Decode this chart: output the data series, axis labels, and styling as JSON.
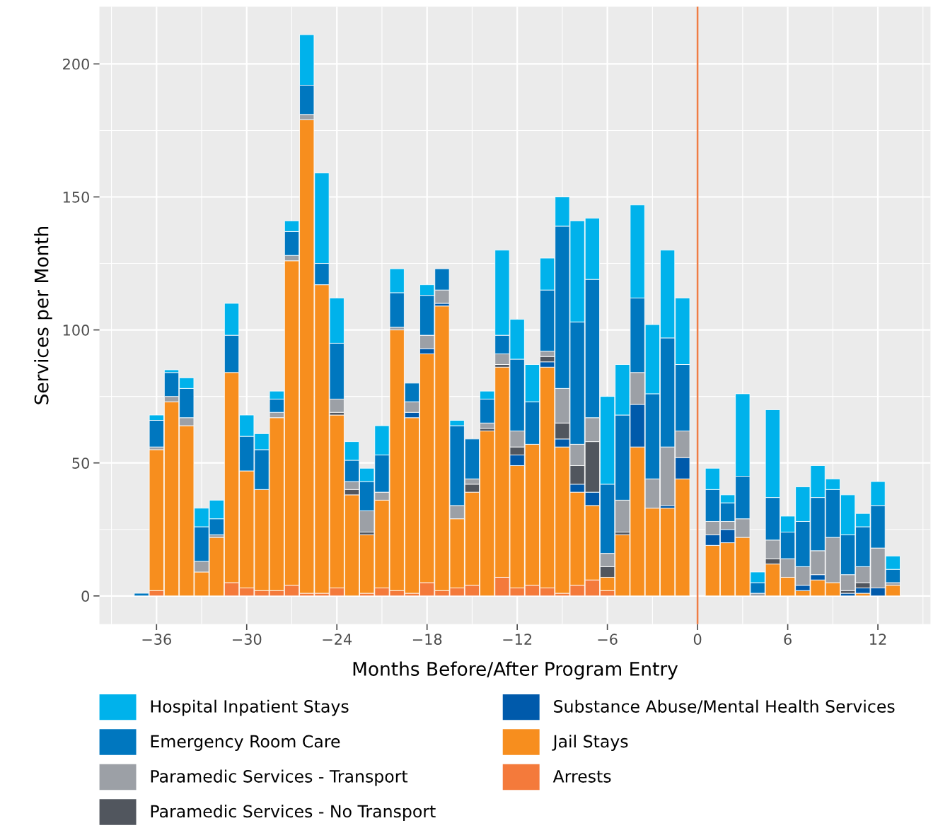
{
  "chart_data": {
    "type": "bar",
    "stacked": true,
    "xlabel": "Months Before/After Program Entry",
    "ylabel": "Services per Month",
    "x": [
      -37,
      -36,
      -35,
      -34,
      -33,
      -32,
      -31,
      -30,
      -29,
      -28,
      -27,
      -26,
      -25,
      -24,
      -23,
      -22,
      -21,
      -20,
      -19,
      -18,
      -17,
      -16,
      -15,
      -14,
      -13,
      -12,
      -11,
      -10,
      -9,
      -8,
      -7,
      -6,
      -5,
      -4,
      -3,
      -2,
      -1,
      1,
      2,
      3,
      4,
      5,
      6,
      7,
      8,
      9,
      10,
      11,
      12,
      13
    ],
    "series": [
      {
        "name": "Arrests",
        "color": "#f47a3b",
        "values": [
          0,
          2,
          0,
          0,
          0,
          0,
          5,
          3,
          2,
          2,
          4,
          1,
          1,
          3,
          0,
          1,
          3,
          2,
          1,
          5,
          2,
          3,
          4,
          0,
          7,
          3,
          4,
          3,
          1,
          4,
          6,
          2,
          0,
          0,
          0,
          0,
          0,
          0,
          0,
          0,
          0,
          0,
          0,
          0,
          0,
          0,
          0,
          0,
          0,
          0
        ]
      },
      {
        "name": "Jail Stays",
        "color": "#f78e1e",
        "values": [
          0,
          53,
          73,
          64,
          9,
          22,
          79,
          44,
          38,
          65,
          122,
          178,
          116,
          65,
          38,
          22,
          33,
          98,
          66,
          86,
          107,
          26,
          35,
          62,
          79,
          46,
          53,
          83,
          55,
          35,
          28,
          5,
          23,
          56,
          33,
          33,
          44,
          19,
          20,
          22,
          0,
          12,
          7,
          2,
          6,
          5,
          0,
          1,
          0,
          4
        ]
      },
      {
        "name": "Substance Abuse/Mental Health Services",
        "color": "#005aab",
        "values": [
          0,
          0,
          0,
          0,
          0,
          0,
          0,
          0,
          0,
          0,
          0,
          0,
          0,
          0,
          0,
          0,
          0,
          0,
          2,
          2,
          1,
          0,
          0,
          0,
          0,
          4,
          0,
          2,
          3,
          3,
          5,
          0,
          0,
          16,
          0,
          1,
          8,
          4,
          5,
          0,
          0,
          0,
          0,
          2,
          2,
          0,
          1,
          2,
          3,
          0
        ]
      },
      {
        "name": "Paramedic Services - No Transport",
        "color": "#51565e",
        "values": [
          0,
          0,
          0,
          0,
          0,
          0,
          0,
          0,
          0,
          0,
          0,
          0,
          0,
          1,
          2,
          1,
          0,
          0,
          0,
          0,
          0,
          0,
          3,
          1,
          1,
          3,
          0,
          2,
          6,
          7,
          19,
          4,
          1,
          0,
          0,
          0,
          0,
          0,
          0,
          0,
          0,
          2,
          0,
          0,
          0,
          0,
          1,
          2,
          0,
          0
        ]
      },
      {
        "name": "Paramedic Services - Transport",
        "color": "#9ca0a6",
        "values": [
          0,
          1,
          2,
          3,
          4,
          1,
          0,
          0,
          0,
          2,
          2,
          2,
          0,
          5,
          3,
          8,
          3,
          1,
          4,
          5,
          5,
          5,
          2,
          2,
          4,
          6,
          0,
          2,
          13,
          8,
          9,
          5,
          12,
          12,
          11,
          22,
          10,
          5,
          3,
          7,
          1,
          7,
          7,
          7,
          9,
          17,
          6,
          6,
          15,
          1
        ]
      },
      {
        "name": "Emergency Room Care",
        "color": "#0077bf",
        "values": [
          1,
          10,
          9,
          11,
          13,
          6,
          14,
          13,
          15,
          5,
          9,
          11,
          8,
          21,
          8,
          11,
          14,
          13,
          7,
          15,
          8,
          30,
          15,
          9,
          7,
          27,
          16,
          23,
          61,
          46,
          52,
          26,
          32,
          28,
          32,
          41,
          25,
          12,
          7,
          16,
          4,
          16,
          10,
          17,
          20,
          18,
          15,
          15,
          16,
          5
        ]
      },
      {
        "name": "Hospital Inpatient Stays",
        "color": "#00b2eb",
        "values": [
          0,
          2,
          1,
          4,
          7,
          7,
          12,
          8,
          6,
          3,
          4,
          19,
          34,
          17,
          7,
          5,
          11,
          9,
          0,
          4,
          0,
          2,
          0,
          3,
          32,
          15,
          14,
          12,
          11,
          38,
          23,
          33,
          19,
          35,
          26,
          33,
          25,
          8,
          3,
          31,
          4,
          33,
          6,
          13,
          12,
          4,
          15,
          5,
          9,
          5
        ]
      }
    ],
    "xlim": [
      -39.8,
      15.5
    ],
    "ylim": [
      -10.6,
      221.5
    ],
    "xticks": [
      {
        "value": -36,
        "label": "−36"
      },
      {
        "value": -30,
        "label": "−30"
      },
      {
        "value": -24,
        "label": "−24"
      },
      {
        "value": -18,
        "label": "−18"
      },
      {
        "value": -12,
        "label": "−12"
      },
      {
        "value": -6,
        "label": "−6"
      },
      0,
      6,
      12
    ],
    "yticks": [
      0,
      50,
      100,
      150,
      200
    ],
    "ref_lines": [
      {
        "axis": "x",
        "value": 0,
        "color": "#ef7d45"
      }
    ],
    "grid": true,
    "legend": "bottom"
  }
}
